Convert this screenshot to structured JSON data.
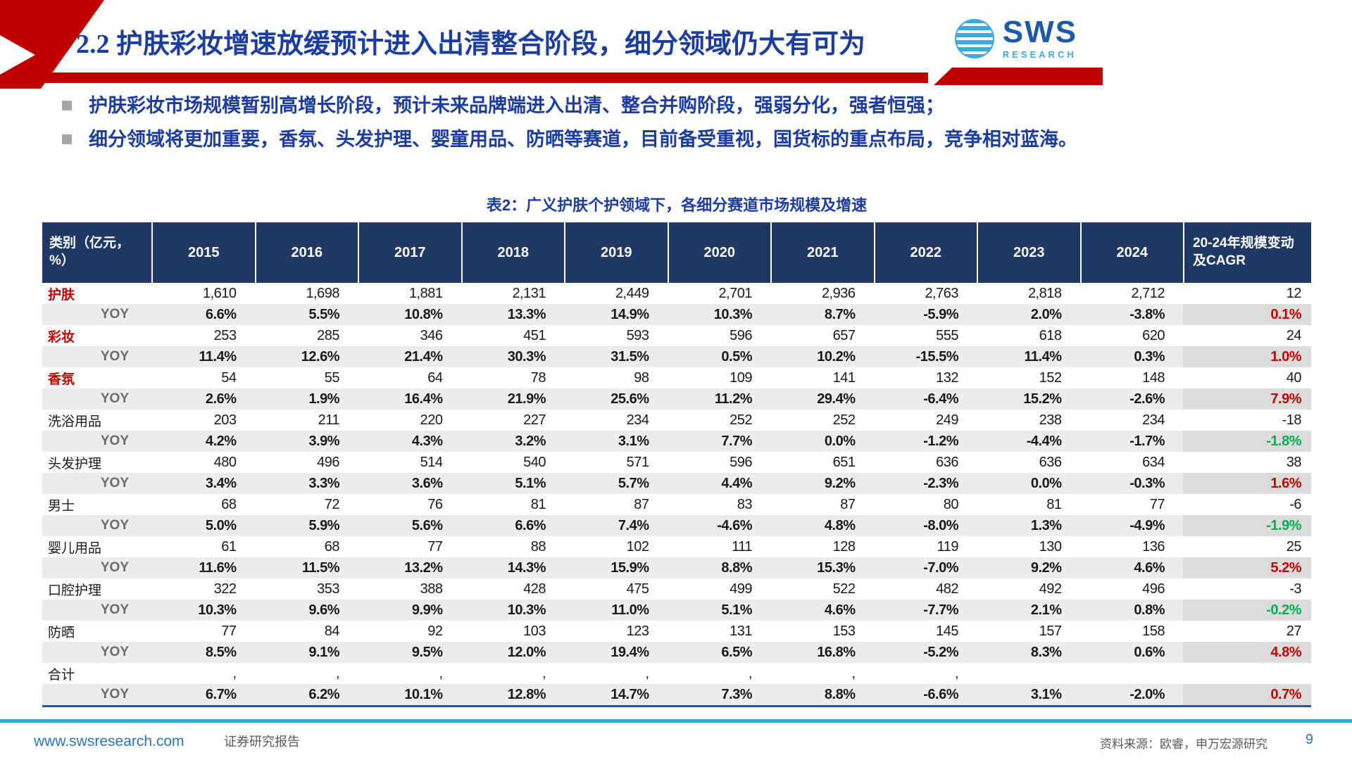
{
  "header": {
    "title": "2.2 护肤彩妆增速放缓预计进入出清整合阶段，细分领域仍大有可为",
    "logo": {
      "text": "SWS",
      "subtext": "RESEARCH"
    }
  },
  "bullets": [
    "护肤彩妆市场规模暂别高增长阶段，预计未来品牌端进入出清、整合并购阶段，强弱分化，强者恒强；",
    "细分领域将更加重要，香氛、头发护理、婴童用品、防晒等赛道，目前备受重视，国货标的重点布局，竞争相对蓝海。"
  ],
  "chart_data": {
    "type": "table",
    "caption": "表2：广义护肤个护领域下，各细分赛道市场规模及增速",
    "columns": [
      "类别（亿元，%）",
      "2015",
      "2016",
      "2017",
      "2018",
      "2019",
      "2020",
      "2021",
      "2022",
      "2023",
      "2024",
      "20-24年规模变动及CAGR"
    ],
    "rows": [
      {
        "label": "护肤",
        "kind": "cat",
        "label_style": "red",
        "values": [
          "1,610",
          "1,698",
          "1,881",
          "2,131",
          "2,449",
          "2,701",
          "2,936",
          "2,763",
          "2,818",
          "2,712",
          "12"
        ]
      },
      {
        "label": "YOY",
        "kind": "yoy",
        "last_style": "red",
        "values": [
          "6.6%",
          "5.5%",
          "10.8%",
          "13.3%",
          "14.9%",
          "10.3%",
          "8.7%",
          "-5.9%",
          "2.0%",
          "-3.8%",
          "0.1%"
        ]
      },
      {
        "label": "彩妆",
        "kind": "cat",
        "label_style": "red",
        "values": [
          "253",
          "285",
          "346",
          "451",
          "593",
          "596",
          "657",
          "555",
          "618",
          "620",
          "24"
        ]
      },
      {
        "label": "YOY",
        "kind": "yoy",
        "last_style": "red",
        "values": [
          "11.4%",
          "12.6%",
          "21.4%",
          "30.3%",
          "31.5%",
          "0.5%",
          "10.2%",
          "-15.5%",
          "11.4%",
          "0.3%",
          "1.0%"
        ]
      },
      {
        "label": "香氛",
        "kind": "cat",
        "label_style": "red",
        "values": [
          "54",
          "55",
          "64",
          "78",
          "98",
          "109",
          "141",
          "132",
          "152",
          "148",
          "40"
        ]
      },
      {
        "label": "YOY",
        "kind": "yoy",
        "last_style": "red",
        "values": [
          "2.6%",
          "1.9%",
          "16.4%",
          "21.9%",
          "25.6%",
          "11.2%",
          "29.4%",
          "-6.4%",
          "15.2%",
          "-2.6%",
          "7.9%"
        ]
      },
      {
        "label": "洗浴用品",
        "kind": "cat",
        "label_style": "black",
        "values": [
          "203",
          "211",
          "220",
          "227",
          "234",
          "252",
          "252",
          "249",
          "238",
          "234",
          "-18"
        ]
      },
      {
        "label": "YOY",
        "kind": "yoy",
        "last_style": "green",
        "values": [
          "4.2%",
          "3.9%",
          "4.3%",
          "3.2%",
          "3.1%",
          "7.7%",
          "0.0%",
          "-1.2%",
          "-4.4%",
          "-1.7%",
          "-1.8%"
        ]
      },
      {
        "label": "头发护理",
        "kind": "cat",
        "label_style": "black",
        "values": [
          "480",
          "496",
          "514",
          "540",
          "571",
          "596",
          "651",
          "636",
          "636",
          "634",
          "38"
        ]
      },
      {
        "label": "YOY",
        "kind": "yoy",
        "last_style": "red",
        "values": [
          "3.4%",
          "3.3%",
          "3.6%",
          "5.1%",
          "5.7%",
          "4.4%",
          "9.2%",
          "-2.3%",
          "0.0%",
          "-0.3%",
          "1.6%"
        ]
      },
      {
        "label": "男士",
        "kind": "cat",
        "label_style": "black",
        "values": [
          "68",
          "72",
          "76",
          "81",
          "87",
          "83",
          "87",
          "80",
          "81",
          "77",
          "-6"
        ]
      },
      {
        "label": "YOY",
        "kind": "yoy",
        "last_style": "green",
        "values": [
          "5.0%",
          "5.9%",
          "5.6%",
          "6.6%",
          "7.4%",
          "-4.6%",
          "4.8%",
          "-8.0%",
          "1.3%",
          "-4.9%",
          "-1.9%"
        ]
      },
      {
        "label": "婴儿用品",
        "kind": "cat",
        "label_style": "black",
        "values": [
          "61",
          "68",
          "77",
          "88",
          "102",
          "111",
          "128",
          "119",
          "130",
          "136",
          "25"
        ]
      },
      {
        "label": "YOY",
        "kind": "yoy",
        "last_style": "red",
        "values": [
          "11.6%",
          "11.5%",
          "13.2%",
          "14.3%",
          "15.9%",
          "8.8%",
          "15.3%",
          "-7.0%",
          "9.2%",
          "4.6%",
          "5.2%"
        ]
      },
      {
        "label": "口腔护理",
        "kind": "cat",
        "label_style": "black",
        "values": [
          "322",
          "353",
          "388",
          "428",
          "475",
          "499",
          "522",
          "482",
          "492",
          "496",
          "-3"
        ]
      },
      {
        "label": "YOY",
        "kind": "yoy",
        "last_style": "green",
        "values": [
          "10.3%",
          "9.6%",
          "9.9%",
          "10.3%",
          "11.0%",
          "5.1%",
          "4.6%",
          "-7.7%",
          "2.1%",
          "0.8%",
          "-0.2%"
        ]
      },
      {
        "label": "防晒",
        "kind": "cat",
        "label_style": "black",
        "values": [
          "77",
          "84",
          "92",
          "103",
          "123",
          "131",
          "153",
          "145",
          "157",
          "158",
          "27"
        ]
      },
      {
        "label": "YOY",
        "kind": "yoy",
        "last_style": "red",
        "values": [
          "8.5%",
          "9.1%",
          "9.5%",
          "12.0%",
          "19.4%",
          "6.5%",
          "16.8%",
          "-5.2%",
          "8.3%",
          "0.6%",
          "4.8%"
        ]
      },
      {
        "label": "合计",
        "kind": "cat",
        "label_style": "black",
        "values": [
          ",",
          ",",
          ",",
          ",",
          ",",
          ",",
          ",",
          ",",
          "",
          "",
          ""
        ]
      },
      {
        "label": "YOY",
        "kind": "yoy",
        "last_style": "red",
        "values": [
          "6.7%",
          "6.2%",
          "10.1%",
          "12.8%",
          "14.7%",
          "7.3%",
          "8.8%",
          "-6.6%",
          "3.1%",
          "-2.0%",
          "0.7%"
        ]
      }
    ]
  },
  "footer": {
    "url": "www.swsresearch.com",
    "report_type": "证券研究报告",
    "source": "资料来源：欧睿，申万宏源研究",
    "page": "9"
  },
  "colors": {
    "accent_red": "#C00000",
    "title_blue": "#1C3C9E",
    "header_navy": "#1F3864",
    "positive_red": "#C00000",
    "negative_green": "#00B050",
    "divider_cyan": "#29ABE2",
    "link_blue": "#2E74B5"
  }
}
